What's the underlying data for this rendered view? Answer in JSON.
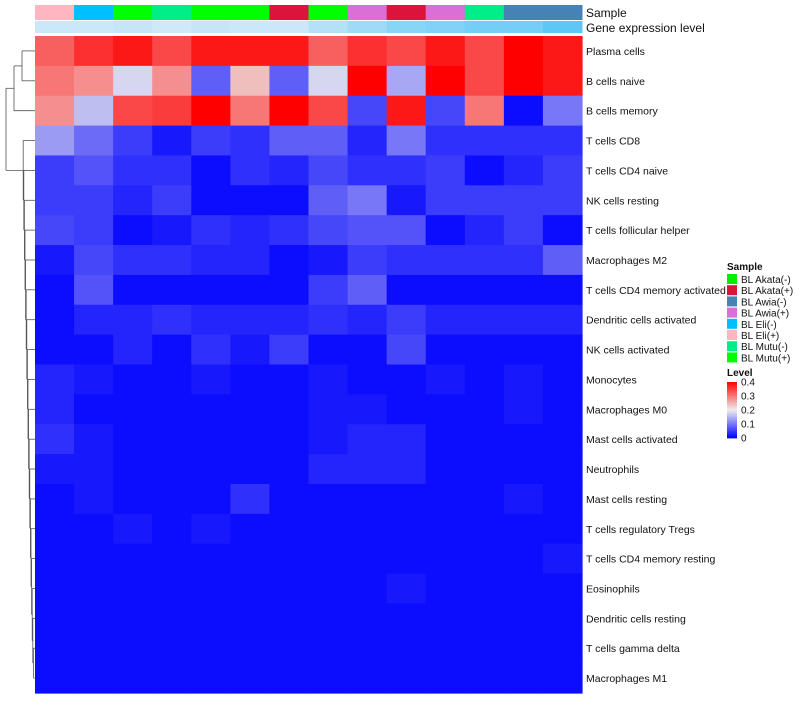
{
  "chart_data": {
    "type": "heatmap",
    "annotation_labels": [
      "Sample",
      "Gene expression level"
    ],
    "rows": [
      "Plasma cells",
      "B cells naive",
      "B cells memory",
      "T cells CD8",
      "T cells CD4 naive",
      "NK cells resting",
      "T cells follicular helper",
      "Macrophages M2",
      "T cells CD4 memory activated",
      "Dendritic cells activated",
      "NK cells activated",
      "Monocytes",
      "Macrophages M0",
      "Mast cells activated",
      "Neutrophils",
      "Mast cells resting",
      "T cells regulatory  Tregs",
      "T cells CD4 memory resting",
      "Eosinophils",
      "Dendritic cells resting",
      "T cells gamma delta",
      "Macrophages M1"
    ],
    "column_samples": [
      "BL Eli(+)",
      "BL Eli(-)",
      "BL Mutu(+)",
      "BL Mutu(-)",
      "BL Mutu(+)",
      "BL Mutu(+)",
      "BL Akata(+)",
      "BL Mutu(+)",
      "BL Awia(+)",
      "BL Akata(+)",
      "BL Awia(+)",
      "BL Mutu(-)",
      "BL Awia(-)",
      "BL Awia(-)"
    ],
    "column_expression_levels": [
      0.05,
      0.05,
      0.06,
      0.04,
      0.06,
      0.05,
      0.05,
      0.1,
      0.15,
      0.2,
      0.22,
      0.25,
      0.25,
      0.3
    ],
    "values": [
      [
        0.32,
        0.36,
        0.38,
        0.34,
        0.38,
        0.38,
        0.38,
        0.32,
        0.36,
        0.34,
        0.38,
        0.34,
        0.4,
        0.38
      ],
      [
        0.3,
        0.28,
        0.18,
        0.28,
        0.08,
        0.24,
        0.08,
        0.18,
        0.4,
        0.14,
        0.4,
        0.34,
        0.4,
        0.38
      ],
      [
        0.28,
        0.16,
        0.34,
        0.35,
        0.4,
        0.3,
        0.4,
        0.34,
        0.06,
        0.38,
        0.06,
        0.3,
        0.01,
        0.1
      ],
      [
        0.13,
        0.09,
        0.05,
        0.02,
        0.05,
        0.04,
        0.08,
        0.08,
        0.03,
        0.1,
        0.04,
        0.04,
        0.04,
        0.04
      ],
      [
        0.05,
        0.07,
        0.04,
        0.04,
        0.01,
        0.04,
        0.03,
        0.06,
        0.04,
        0.04,
        0.05,
        0.01,
        0.03,
        0.05
      ],
      [
        0.05,
        0.05,
        0.03,
        0.05,
        0.01,
        0.01,
        0.01,
        0.08,
        0.1,
        0.02,
        0.05,
        0.05,
        0.05,
        0.05
      ],
      [
        0.06,
        0.05,
        0.01,
        0.02,
        0.04,
        0.03,
        0.04,
        0.06,
        0.07,
        0.07,
        0.01,
        0.03,
        0.05,
        0.01
      ],
      [
        0.02,
        0.06,
        0.04,
        0.04,
        0.03,
        0.03,
        0.01,
        0.02,
        0.05,
        0.04,
        0.04,
        0.04,
        0.04,
        0.08
      ],
      [
        0.01,
        0.07,
        0.01,
        0.01,
        0.01,
        0.01,
        0.01,
        0.05,
        0.08,
        0.01,
        0.01,
        0.01,
        0.01,
        0.01
      ],
      [
        0.01,
        0.03,
        0.03,
        0.04,
        0.03,
        0.03,
        0.03,
        0.04,
        0.03,
        0.05,
        0.03,
        0.03,
        0.03,
        0.03
      ],
      [
        0.01,
        0.01,
        0.03,
        0.01,
        0.04,
        0.02,
        0.05,
        0.01,
        0.01,
        0.06,
        0.01,
        0.01,
        0.01,
        0.01
      ],
      [
        0.03,
        0.02,
        0.01,
        0.01,
        0.02,
        0.01,
        0.01,
        0.02,
        0.01,
        0.01,
        0.02,
        0.01,
        0.02,
        0.01
      ],
      [
        0.03,
        0.01,
        0.01,
        0.01,
        0.01,
        0.01,
        0.01,
        0.02,
        0.02,
        0.01,
        0.01,
        0.01,
        0.02,
        0.01
      ],
      [
        0.04,
        0.02,
        0.01,
        0.01,
        0.01,
        0.01,
        0.01,
        0.02,
        0.03,
        0.03,
        0.01,
        0.01,
        0.01,
        0.01
      ],
      [
        0.02,
        0.02,
        0.01,
        0.01,
        0.01,
        0.01,
        0.01,
        0.03,
        0.03,
        0.03,
        0.01,
        0.01,
        0.01,
        0.01
      ],
      [
        0.01,
        0.02,
        0.01,
        0.01,
        0.01,
        0.04,
        0.01,
        0.01,
        0.01,
        0.01,
        0.01,
        0.01,
        0.02,
        0.01
      ],
      [
        0.01,
        0.01,
        0.02,
        0.01,
        0.02,
        0.01,
        0.01,
        0.01,
        0.01,
        0.01,
        0.01,
        0.01,
        0.01,
        0.01
      ],
      [
        0.01,
        0.01,
        0.01,
        0.01,
        0.01,
        0.01,
        0.01,
        0.01,
        0.01,
        0.01,
        0.01,
        0.01,
        0.01,
        0.02
      ],
      [
        0.01,
        0.01,
        0.01,
        0.01,
        0.01,
        0.01,
        0.01,
        0.01,
        0.01,
        0.02,
        0.01,
        0.01,
        0.01,
        0.01
      ],
      [
        0.01,
        0.01,
        0.01,
        0.01,
        0.01,
        0.01,
        0.01,
        0.01,
        0.01,
        0.01,
        0.01,
        0.01,
        0.01,
        0.01
      ],
      [
        0.01,
        0.01,
        0.01,
        0.01,
        0.01,
        0.01,
        0.01,
        0.01,
        0.01,
        0.01,
        0.01,
        0.01,
        0.01,
        0.01
      ],
      [
        0.01,
        0.01,
        0.01,
        0.01,
        0.01,
        0.01,
        0.01,
        0.01,
        0.01,
        0.01,
        0.01,
        0.01,
        0.01,
        0.01
      ]
    ],
    "color_scale": {
      "min": 0,
      "max": 0.4,
      "stops": [
        {
          "value": 0,
          "color": "#0000ff"
        },
        {
          "value": 0.2,
          "color": "#eeeeee"
        },
        {
          "value": 0.4,
          "color": "#ff0000"
        }
      ]
    },
    "legend": {
      "sample": {
        "title": "Sample",
        "entries": [
          {
            "label": "BL Akata(-)",
            "color": "#00ee00"
          },
          {
            "label": "BL Akata(+)",
            "color": "#dc143c"
          },
          {
            "label": "BL Awia(-)",
            "color": "#4682b4"
          },
          {
            "label": "BL Awia(+)",
            "color": "#da70d6"
          },
          {
            "label": "BL Eli(-)",
            "color": "#00bfff"
          },
          {
            "label": "BL Eli(+)",
            "color": "#ffb6c1"
          },
          {
            "label": "BL Mutu(-)",
            "color": "#00ee88"
          },
          {
            "label": "BL Mutu(+)",
            "color": "#00ff00"
          }
        ]
      },
      "level": {
        "title": "Level",
        "ticks": [
          "0.4",
          "0.3",
          "0.2",
          "0.1",
          "0"
        ],
        "tick_values": [
          0.4,
          0.3,
          0.2,
          0.1,
          0
        ]
      }
    },
    "sample_colors": {
      "BL Akata(-)": "#00ee00",
      "BL Akata(+)": "#dc143c",
      "BL Awia(-)": "#4682b4",
      "BL Awia(+)": "#da70d6",
      "BL Eli(-)": "#00bfff",
      "BL Eli(+)": "#ffb6c1",
      "BL Mutu(-)": "#00ee88",
      "BL Mutu(+)": "#00ff00"
    }
  }
}
